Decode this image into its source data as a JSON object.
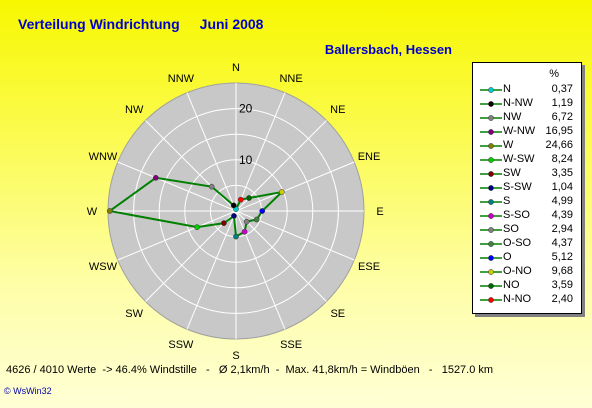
{
  "title": "Verteilung Windrichtung",
  "period": "Juni 2008",
  "location": "Ballersbach, Hessen",
  "footer": "4626 / 4010 Werte  -> 46.4% Windstille   -   Ø 2,1km/h  -  Max. 41,8km/h = Windböen   -   1527.0 km",
  "brand": "© WsWin32",
  "chart_data": {
    "type": "radar",
    "unit": "%",
    "rmax": 25,
    "ring_labels": [
      10,
      20
    ],
    "series_color": "#008000",
    "directions": [
      {
        "name": "N",
        "value": 0.37,
        "color": "#00cccc"
      },
      {
        "name": "N-NW",
        "value": 1.19,
        "color": "#000000"
      },
      {
        "name": "NW",
        "value": 6.72,
        "color": "#808080"
      },
      {
        "name": "W-NW",
        "value": 16.95,
        "color": "#800080"
      },
      {
        "name": "W",
        "value": 24.66,
        "color": "#808000"
      },
      {
        "name": "W-SW",
        "value": 8.24,
        "color": "#00cc00"
      },
      {
        "name": "SW",
        "value": 3.35,
        "color": "#800000"
      },
      {
        "name": "S-SW",
        "value": 1.04,
        "color": "#000080"
      },
      {
        "name": "S",
        "value": 4.99,
        "color": "#008080"
      },
      {
        "name": "S-SO",
        "value": 4.39,
        "color": "#cc00cc"
      },
      {
        "name": "SO",
        "value": 2.94,
        "color": "#808080"
      },
      {
        "name": "O-SO",
        "value": 4.37,
        "color": "#408040"
      },
      {
        "name": "O",
        "value": 5.12,
        "color": "#0000ff"
      },
      {
        "name": "O-NO",
        "value": 9.68,
        "color": "#cccc00"
      },
      {
        "name": "NO",
        "value": 3.59,
        "color": "#006600"
      },
      {
        "name": "N-NO",
        "value": 2.4,
        "color": "#ff0000"
      }
    ],
    "compass": [
      "N",
      "NNE",
      "NE",
      "ENE",
      "E",
      "ESE",
      "SE",
      "SSE",
      "S",
      "SSW",
      "SW",
      "WSW",
      "W",
      "WNW",
      "NW",
      "NNW"
    ]
  }
}
